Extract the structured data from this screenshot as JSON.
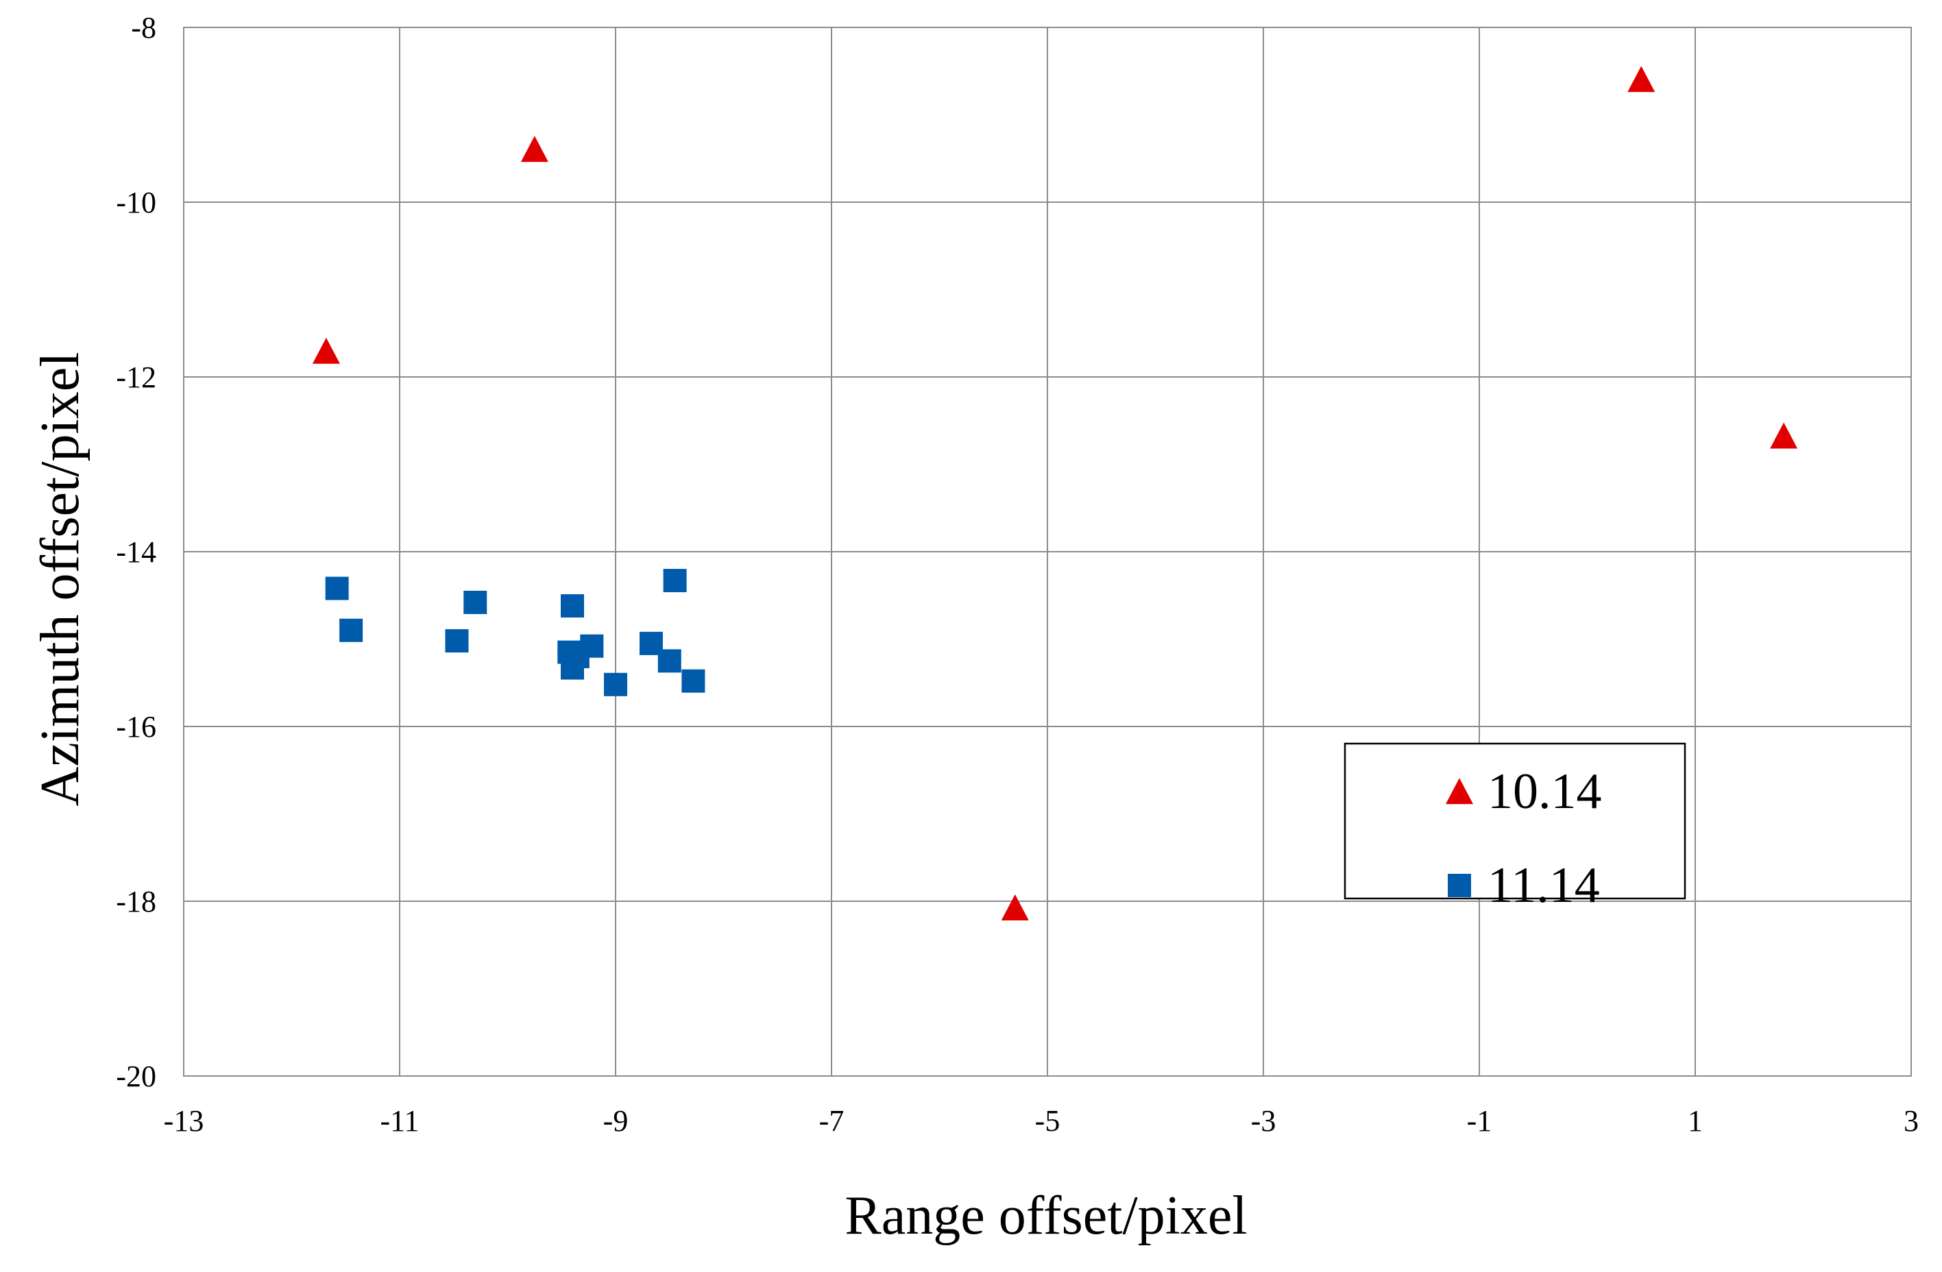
{
  "chart_data": {
    "type": "scatter",
    "title": "",
    "xlabel": "Range offset/pixel",
    "ylabel": "Azimuth offset/pixel",
    "xlim": [
      -13,
      3
    ],
    "ylim": [
      -20,
      -8
    ],
    "grid": true,
    "x_ticks": [
      -13,
      -11,
      -9,
      -7,
      -5,
      -3,
      -1,
      1,
      3
    ],
    "y_ticks": [
      -8,
      -10,
      -12,
      -14,
      -16,
      -18,
      -20
    ],
    "legend_position": "lower-right",
    "series": [
      {
        "name": "10.14",
        "marker": "triangle",
        "color": "#e00000",
        "points": [
          {
            "x": -9.75,
            "y": -9.42
          },
          {
            "x": -11.68,
            "y": -11.73
          },
          {
            "x": 0.5,
            "y": -8.62
          },
          {
            "x": 1.82,
            "y": -12.7
          },
          {
            "x": -5.3,
            "y": -18.1
          }
        ]
      },
      {
        "name": "11.14",
        "marker": "square",
        "color": "#005bab",
        "points": [
          {
            "x": -11.58,
            "y": -14.42
          },
          {
            "x": -11.45,
            "y": -14.9
          },
          {
            "x": -10.3,
            "y": -14.58
          },
          {
            "x": -10.47,
            "y": -15.02
          },
          {
            "x": -9.4,
            "y": -14.62
          },
          {
            "x": -9.43,
            "y": -15.15
          },
          {
            "x": -9.4,
            "y": -15.33
          },
          {
            "x": -9.35,
            "y": -15.2
          },
          {
            "x": -9.22,
            "y": -15.08
          },
          {
            "x": -9.0,
            "y": -15.52
          },
          {
            "x": -8.67,
            "y": -15.05
          },
          {
            "x": -8.5,
            "y": -15.25
          },
          {
            "x": -8.45,
            "y": -14.33
          },
          {
            "x": -8.28,
            "y": -15.48
          }
        ]
      }
    ]
  }
}
